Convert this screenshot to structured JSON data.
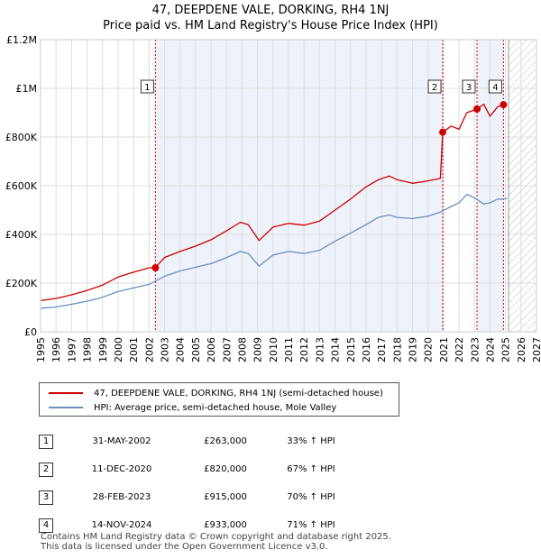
{
  "chart_data": {
    "type": "line",
    "title": "47, DEEPDENE VALE, DORKING, RH4 1NJ",
    "subtitle": "Price paid vs. HM Land Registry's House Price Index (HPI)",
    "xlim": [
      1995,
      2027
    ],
    "ylim": [
      0,
      1200000
    ],
    "x_ticks": [
      "1995",
      "1996",
      "1997",
      "1998",
      "1999",
      "2000",
      "2001",
      "2002",
      "2003",
      "2004",
      "2005",
      "2006",
      "2007",
      "2008",
      "2009",
      "2010",
      "2011",
      "2012",
      "2013",
      "2014",
      "2015",
      "2016",
      "2017",
      "2018",
      "2019",
      "2020",
      "2021",
      "2022",
      "2023",
      "2024",
      "2025",
      "2026",
      "2027"
    ],
    "y_ticks": [
      {
        "value": 0,
        "label": "£0"
      },
      {
        "value": 200000,
        "label": "£200K"
      },
      {
        "value": 400000,
        "label": "£400K"
      },
      {
        "value": 600000,
        "label": "£600K"
      },
      {
        "value": 800000,
        "label": "£800K"
      },
      {
        "value": 1000000,
        "label": "£1M"
      },
      {
        "value": 1200000,
        "label": "£1.2M"
      }
    ],
    "grid": true,
    "forecast_from": 2025.2,
    "series": [
      {
        "name": "47, DEEPDENE VALE, DORKING, RH4 1NJ (semi-detached house)",
        "color": "#cc0000",
        "points": [
          [
            1995.0,
            128000
          ],
          [
            1996.0,
            137000
          ],
          [
            1997.0,
            152000
          ],
          [
            1998.0,
            170000
          ],
          [
            1999.0,
            192000
          ],
          [
            2000.0,
            225000
          ],
          [
            2001.0,
            245000
          ],
          [
            2002.0,
            263000
          ],
          [
            2002.4,
            263000
          ],
          [
            2003.0,
            305000
          ],
          [
            2004.0,
            330000
          ],
          [
            2005.0,
            352000
          ],
          [
            2006.0,
            378000
          ],
          [
            2007.0,
            415000
          ],
          [
            2007.9,
            450000
          ],
          [
            2008.4,
            440000
          ],
          [
            2009.1,
            375000
          ],
          [
            2010.0,
            430000
          ],
          [
            2011.0,
            445000
          ],
          [
            2012.0,
            438000
          ],
          [
            2013.0,
            455000
          ],
          [
            2014.0,
            500000
          ],
          [
            2015.0,
            545000
          ],
          [
            2016.0,
            595000
          ],
          [
            2016.8,
            625000
          ],
          [
            2017.5,
            640000
          ],
          [
            2018.0,
            625000
          ],
          [
            2019.0,
            610000
          ],
          [
            2020.0,
            620000
          ],
          [
            2020.8,
            630000
          ],
          [
            2020.95,
            820000
          ],
          [
            2021.5,
            845000
          ],
          [
            2022.0,
            832000
          ],
          [
            2022.5,
            900000
          ],
          [
            2023.16,
            915000
          ],
          [
            2023.6,
            935000
          ],
          [
            2024.0,
            885000
          ],
          [
            2024.5,
            925000
          ],
          [
            2024.87,
            933000
          ],
          [
            2025.1,
            930000
          ]
        ]
      },
      {
        "name": "HPI: Average price, semi-detached house, Mole Valley",
        "color": "#6b8fbf",
        "points": [
          [
            1995.0,
            97000
          ],
          [
            1996.0,
            102000
          ],
          [
            1997.0,
            113000
          ],
          [
            1998.0,
            126000
          ],
          [
            1999.0,
            142000
          ],
          [
            2000.0,
            165000
          ],
          [
            2001.0,
            180000
          ],
          [
            2002.0,
            195000
          ],
          [
            2003.0,
            228000
          ],
          [
            2004.0,
            250000
          ],
          [
            2005.0,
            265000
          ],
          [
            2006.0,
            280000
          ],
          [
            2007.0,
            305000
          ],
          [
            2007.9,
            330000
          ],
          [
            2008.4,
            322000
          ],
          [
            2009.1,
            270000
          ],
          [
            2010.0,
            315000
          ],
          [
            2011.0,
            330000
          ],
          [
            2012.0,
            322000
          ],
          [
            2013.0,
            335000
          ],
          [
            2014.0,
            372000
          ],
          [
            2015.0,
            405000
          ],
          [
            2016.0,
            440000
          ],
          [
            2016.8,
            470000
          ],
          [
            2017.5,
            480000
          ],
          [
            2018.0,
            470000
          ],
          [
            2019.0,
            465000
          ],
          [
            2020.0,
            475000
          ],
          [
            2020.8,
            492000
          ],
          [
            2021.5,
            515000
          ],
          [
            2022.0,
            530000
          ],
          [
            2022.5,
            565000
          ],
          [
            2023.0,
            550000
          ],
          [
            2023.6,
            525000
          ],
          [
            2024.0,
            530000
          ],
          [
            2024.5,
            545000
          ],
          [
            2024.87,
            545000
          ],
          [
            2025.1,
            548000
          ]
        ]
      }
    ],
    "sales": [
      {
        "num": "1",
        "x": 2002.41,
        "y": 263000
      },
      {
        "num": "2",
        "x": 2020.95,
        "y": 820000
      },
      {
        "num": "3",
        "x": 2023.16,
        "y": 915000
      },
      {
        "num": "4",
        "x": 2024.87,
        "y": 933000
      }
    ]
  },
  "legend": {
    "property_label": "47, DEEPDENE VALE, DORKING, RH4 1NJ (semi-detached house)",
    "hpi_label": "HPI: Average price, semi-detached house, Mole Valley"
  },
  "transactions": [
    {
      "num": "1",
      "date": "31-MAY-2002",
      "price": "£263,000",
      "hpi": "33% ↑ HPI"
    },
    {
      "num": "2",
      "date": "11-DEC-2020",
      "price": "£820,000",
      "hpi": "67% ↑ HPI"
    },
    {
      "num": "3",
      "date": "28-FEB-2023",
      "price": "£915,000",
      "hpi": "70% ↑ HPI"
    },
    {
      "num": "4",
      "date": "14-NOV-2024",
      "price": "£933,000",
      "hpi": "71% ↑ HPI"
    }
  ],
  "footer": {
    "line1": "Contains HM Land Registry data © Crown copyright and database right 2025.",
    "line2": "This data is licensed under the Open Government Licence v3.0."
  },
  "colors": {
    "property": "#cc0000",
    "hpi": "#6b8fbf",
    "grid": "#dddddd",
    "shade": "#eef2fa"
  }
}
